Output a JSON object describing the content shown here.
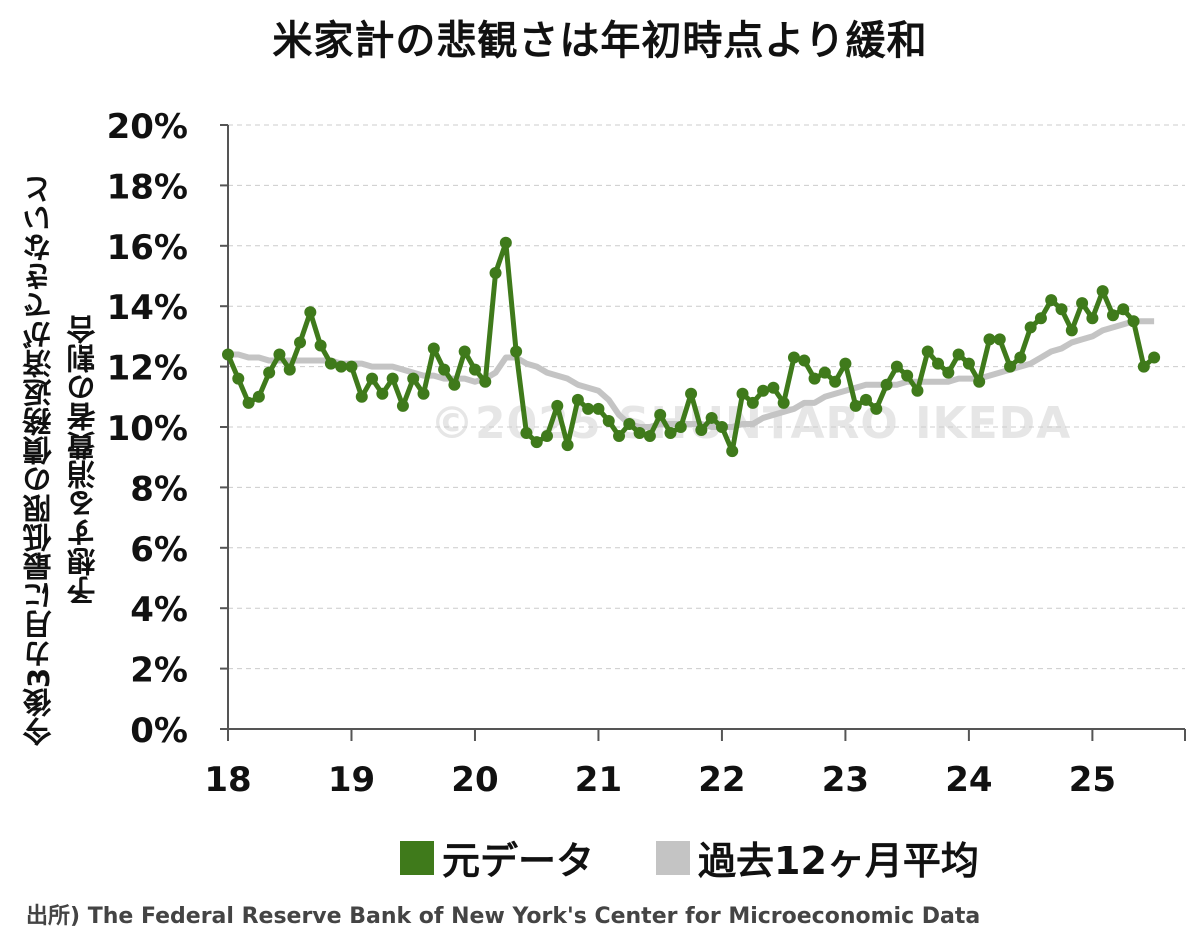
{
  "title": "米家計の悲観さは年初時点より緩和",
  "ylabel_line1": "今後3カ月に最低限の債務返済ができないと",
  "ylabel_line2": "予想する消費者の割合",
  "watermark": "©2025 SHUNTARO IKEDA",
  "source": "出所) The Federal Reserve Bank of New York's Center for Microeconomic Data",
  "colors": {
    "raw": "#3f7a1b",
    "avg": "#c4c4c4",
    "grid": "#cccccc",
    "axis": "#555555"
  },
  "chart_data": {
    "type": "line",
    "title": "米家計の悲観さは年初時点より緩和",
    "ylabel": "今後3カ月に最低限の債務返済ができないと予想する消費者の割合",
    "xlabel": "",
    "ylim": [
      0,
      20
    ],
    "y_ticks": [
      "0%",
      "2%",
      "4%",
      "6%",
      "8%",
      "10%",
      "12%",
      "14%",
      "16%",
      "18%",
      "20%"
    ],
    "x_ticks": [
      "18",
      "19",
      "20",
      "21",
      "22",
      "23",
      "24",
      "25"
    ],
    "x_range_years": [
      2018,
      2025.75
    ],
    "legend": [
      "元データ",
      "過去12ヶ月平均"
    ],
    "legend_position": "bottom",
    "grid": true,
    "series": [
      {
        "name": "元データ",
        "start": "2018-01",
        "values": [
          12.4,
          11.6,
          10.8,
          11.0,
          11.8,
          12.4,
          11.9,
          12.8,
          13.8,
          12.7,
          12.1,
          12.0,
          12.0,
          11.0,
          11.6,
          11.1,
          11.6,
          10.7,
          11.6,
          11.1,
          12.6,
          11.9,
          11.4,
          12.5,
          11.9,
          11.5,
          15.1,
          16.1,
          12.5,
          9.8,
          9.5,
          9.7,
          10.7,
          9.4,
          10.9,
          10.6,
          10.6,
          10.2,
          9.7,
          10.1,
          9.8,
          9.7,
          10.4,
          9.8,
          10.0,
          11.1,
          9.9,
          10.3,
          10.0,
          9.2,
          11.1,
          10.8,
          11.2,
          11.3,
          10.8,
          12.3,
          12.2,
          11.6,
          11.8,
          11.5,
          12.1,
          10.7,
          10.9,
          10.6,
          11.4,
          12.0,
          11.7,
          11.2,
          12.5,
          12.1,
          11.8,
          12.4,
          12.1,
          11.5,
          12.9,
          12.9,
          12.0,
          12.3,
          13.3,
          13.6,
          14.2,
          13.9,
          13.2,
          14.1,
          13.6,
          14.5,
          13.7,
          13.9,
          13.5,
          12.0,
          12.3
        ]
      },
      {
        "name": "過去12ヶ月平均",
        "start": "2018-01",
        "values": [
          12.4,
          12.4,
          12.3,
          12.3,
          12.2,
          12.2,
          12.2,
          12.2,
          12.2,
          12.2,
          12.2,
          12.1,
          12.1,
          12.1,
          12.0,
          12.0,
          12.0,
          11.9,
          11.8,
          11.7,
          11.7,
          11.6,
          11.6,
          11.6,
          11.5,
          11.6,
          11.8,
          12.3,
          12.3,
          12.1,
          12.0,
          11.8,
          11.7,
          11.6,
          11.4,
          11.3,
          11.2,
          10.9,
          10.4,
          10.1,
          10.0,
          10.0,
          10.1,
          10.1,
          10.1,
          10.1,
          10.1,
          10.0,
          10.0,
          10.0,
          10.1,
          10.1,
          10.3,
          10.4,
          10.5,
          10.6,
          10.8,
          10.8,
          11.0,
          11.1,
          11.2,
          11.3,
          11.4,
          11.4,
          11.4,
          11.4,
          11.5,
          11.5,
          11.5,
          11.5,
          11.5,
          11.6,
          11.6,
          11.6,
          11.7,
          11.8,
          11.9,
          12.0,
          12.1,
          12.3,
          12.5,
          12.6,
          12.8,
          12.9,
          13.0,
          13.2,
          13.3,
          13.4,
          13.5,
          13.5,
          13.5
        ]
      }
    ]
  }
}
